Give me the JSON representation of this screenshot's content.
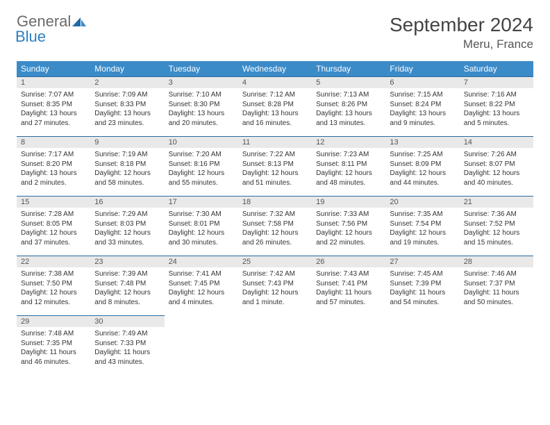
{
  "brand": {
    "part1": "General",
    "part2": "Blue"
  },
  "title": "September 2024",
  "location": "Meru, France",
  "header_bg": "#3b8bc9",
  "daynum_bg": "#e9e9e9",
  "border_color": "#2a6a9c",
  "weekdays": [
    "Sunday",
    "Monday",
    "Tuesday",
    "Wednesday",
    "Thursday",
    "Friday",
    "Saturday"
  ],
  "days": [
    {
      "n": "1",
      "sr": "7:07 AM",
      "ss": "8:35 PM",
      "dl": "13 hours and 27 minutes."
    },
    {
      "n": "2",
      "sr": "7:09 AM",
      "ss": "8:33 PM",
      "dl": "13 hours and 23 minutes."
    },
    {
      "n": "3",
      "sr": "7:10 AM",
      "ss": "8:30 PM",
      "dl": "13 hours and 20 minutes."
    },
    {
      "n": "4",
      "sr": "7:12 AM",
      "ss": "8:28 PM",
      "dl": "13 hours and 16 minutes."
    },
    {
      "n": "5",
      "sr": "7:13 AM",
      "ss": "8:26 PM",
      "dl": "13 hours and 13 minutes."
    },
    {
      "n": "6",
      "sr": "7:15 AM",
      "ss": "8:24 PM",
      "dl": "13 hours and 9 minutes."
    },
    {
      "n": "7",
      "sr": "7:16 AM",
      "ss": "8:22 PM",
      "dl": "13 hours and 5 minutes."
    },
    {
      "n": "8",
      "sr": "7:17 AM",
      "ss": "8:20 PM",
      "dl": "13 hours and 2 minutes."
    },
    {
      "n": "9",
      "sr": "7:19 AM",
      "ss": "8:18 PM",
      "dl": "12 hours and 58 minutes."
    },
    {
      "n": "10",
      "sr": "7:20 AM",
      "ss": "8:16 PM",
      "dl": "12 hours and 55 minutes."
    },
    {
      "n": "11",
      "sr": "7:22 AM",
      "ss": "8:13 PM",
      "dl": "12 hours and 51 minutes."
    },
    {
      "n": "12",
      "sr": "7:23 AM",
      "ss": "8:11 PM",
      "dl": "12 hours and 48 minutes."
    },
    {
      "n": "13",
      "sr": "7:25 AM",
      "ss": "8:09 PM",
      "dl": "12 hours and 44 minutes."
    },
    {
      "n": "14",
      "sr": "7:26 AM",
      "ss": "8:07 PM",
      "dl": "12 hours and 40 minutes."
    },
    {
      "n": "15",
      "sr": "7:28 AM",
      "ss": "8:05 PM",
      "dl": "12 hours and 37 minutes."
    },
    {
      "n": "16",
      "sr": "7:29 AM",
      "ss": "8:03 PM",
      "dl": "12 hours and 33 minutes."
    },
    {
      "n": "17",
      "sr": "7:30 AM",
      "ss": "8:01 PM",
      "dl": "12 hours and 30 minutes."
    },
    {
      "n": "18",
      "sr": "7:32 AM",
      "ss": "7:58 PM",
      "dl": "12 hours and 26 minutes."
    },
    {
      "n": "19",
      "sr": "7:33 AM",
      "ss": "7:56 PM",
      "dl": "12 hours and 22 minutes."
    },
    {
      "n": "20",
      "sr": "7:35 AM",
      "ss": "7:54 PM",
      "dl": "12 hours and 19 minutes."
    },
    {
      "n": "21",
      "sr": "7:36 AM",
      "ss": "7:52 PM",
      "dl": "12 hours and 15 minutes."
    },
    {
      "n": "22",
      "sr": "7:38 AM",
      "ss": "7:50 PM",
      "dl": "12 hours and 12 minutes."
    },
    {
      "n": "23",
      "sr": "7:39 AM",
      "ss": "7:48 PM",
      "dl": "12 hours and 8 minutes."
    },
    {
      "n": "24",
      "sr": "7:41 AM",
      "ss": "7:45 PM",
      "dl": "12 hours and 4 minutes."
    },
    {
      "n": "25",
      "sr": "7:42 AM",
      "ss": "7:43 PM",
      "dl": "12 hours and 1 minute."
    },
    {
      "n": "26",
      "sr": "7:43 AM",
      "ss": "7:41 PM",
      "dl": "11 hours and 57 minutes."
    },
    {
      "n": "27",
      "sr": "7:45 AM",
      "ss": "7:39 PM",
      "dl": "11 hours and 54 minutes."
    },
    {
      "n": "28",
      "sr": "7:46 AM",
      "ss": "7:37 PM",
      "dl": "11 hours and 50 minutes."
    },
    {
      "n": "29",
      "sr": "7:48 AM",
      "ss": "7:35 PM",
      "dl": "11 hours and 46 minutes."
    },
    {
      "n": "30",
      "sr": "7:49 AM",
      "ss": "7:33 PM",
      "dl": "11 hours and 43 minutes."
    }
  ],
  "labels": {
    "sunrise": "Sunrise: ",
    "sunset": "Sunset: ",
    "daylight": "Daylight: "
  }
}
